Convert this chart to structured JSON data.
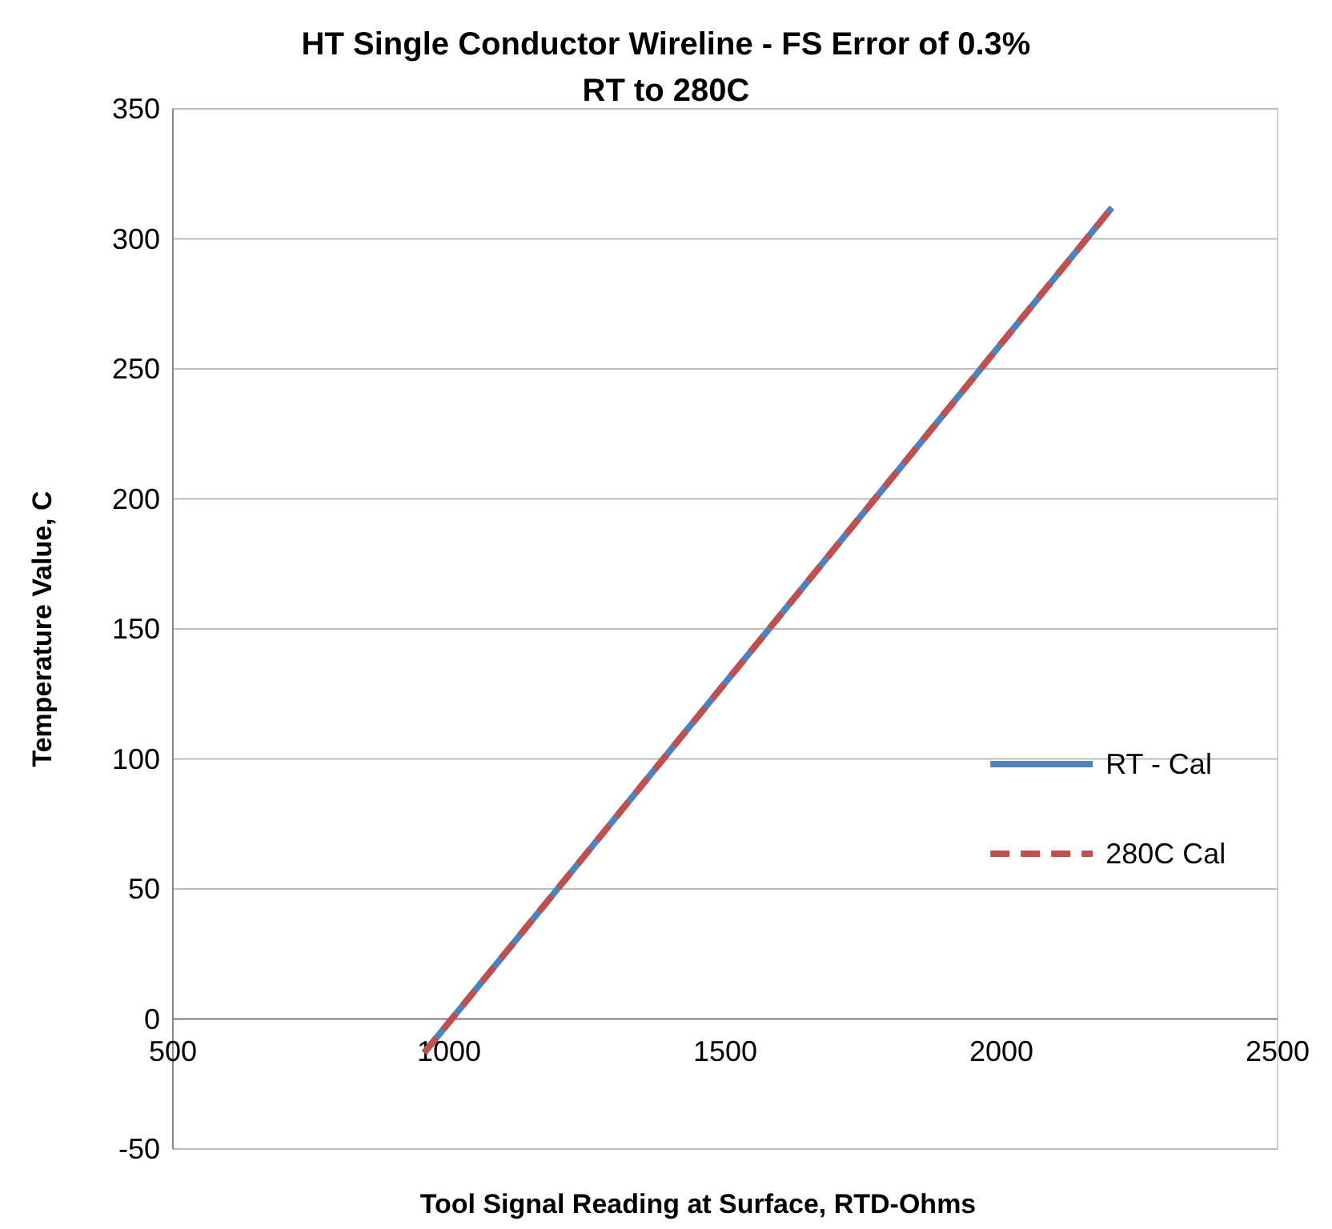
{
  "chart_data": {
    "type": "line",
    "title": "HT Single Conductor  Wireline - FS Error of 0.3%",
    "subtitle": "RT to 280C",
    "xlabel": "Tool Signal Reading at Surface, RTD-Ohms",
    "ylabel": "Temperature Value, C",
    "xlim": [
      500,
      2500
    ],
    "xticks": [
      500,
      1000,
      1500,
      2000,
      2500
    ],
    "ylim": [
      -50,
      350
    ],
    "yticks": [
      -50,
      0,
      50,
      100,
      150,
      200,
      250,
      300,
      350
    ],
    "grid": "y",
    "legend": "right",
    "x": [
      955,
      2200
    ],
    "series": [
      {
        "name": "RT - Cal",
        "color": "#4f81bd",
        "values": [
          -13,
          312
        ],
        "line_style": "solid"
      },
      {
        "name": "280C Cal",
        "color": "#c0504d",
        "values": [
          -13,
          312
        ],
        "line_style": "dashed"
      }
    ]
  }
}
